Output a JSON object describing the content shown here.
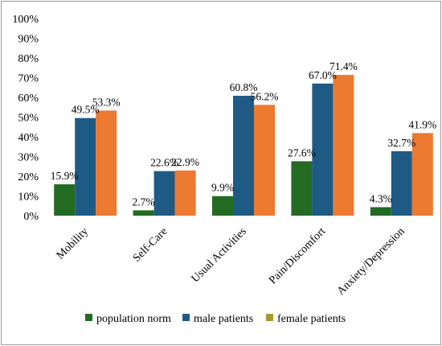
{
  "colors": {
    "population_norm": "#236b23",
    "male_patients": "#1f5a85",
    "female_patients": "#ec7a30",
    "female_legend": "#a89a2a"
  },
  "chart_data": {
    "type": "bar",
    "title": "",
    "xlabel": "",
    "ylabel": "",
    "ylim": [
      0,
      100
    ],
    "y_ticks": [
      "0%",
      "10%",
      "20%",
      "30%",
      "40%",
      "50%",
      "60%",
      "70%",
      "80%",
      "90%",
      "100%"
    ],
    "categories": [
      "Mobility",
      "Self-Care",
      "Usual Activities",
      "Pain/Discomfort",
      "Anxiety/Depression"
    ],
    "series": [
      {
        "name": "population norm",
        "values": [
          15.9,
          2.7,
          9.9,
          27.6,
          4.3
        ],
        "labels": [
          "15.9%",
          "2.7%",
          "9.9%",
          "27.6%",
          "4.3%"
        ]
      },
      {
        "name": "male patients",
        "values": [
          49.5,
          22.6,
          60.8,
          67.0,
          32.7
        ],
        "labels": [
          "49.5%",
          "22.6%",
          "60.8%",
          "67.0%",
          "32.7%"
        ]
      },
      {
        "name": "female patients",
        "values": [
          53.3,
          22.9,
          56.2,
          71.4,
          41.9
        ],
        "labels": [
          "53.3%",
          "22.9%",
          "56.2%",
          "71.4%",
          "41.9%"
        ]
      }
    ],
    "grid": false,
    "legend_position": "bottom"
  }
}
